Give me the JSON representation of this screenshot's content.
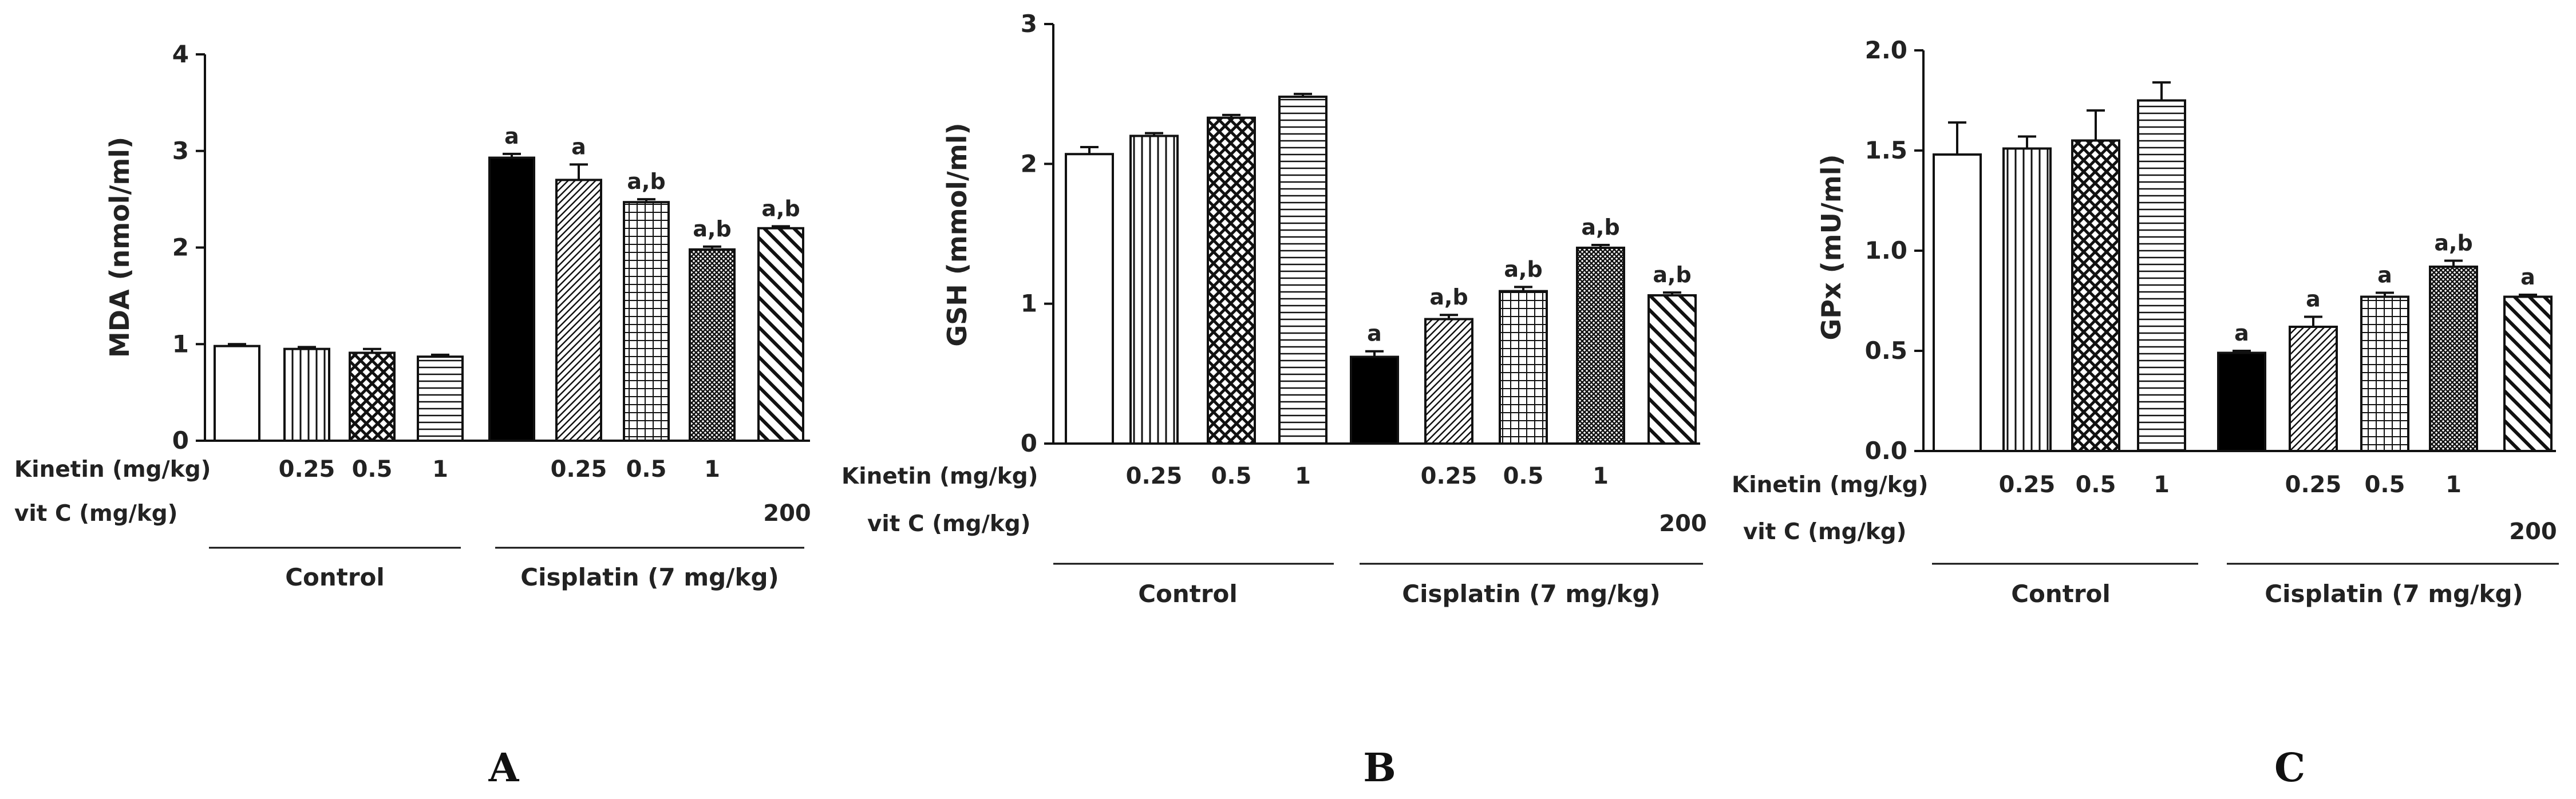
{
  "labels": {
    "kinetin": "Kinetin (mg/kg)",
    "vitc": "vit C (mg/kg)",
    "control": "Control",
    "cisplatin": "Cisplatin (7 mg/kg)"
  },
  "doses": {
    "kinetin": [
      "",
      "0.25",
      "0.5",
      "1",
      "",
      "0.25",
      "0.5",
      "1",
      ""
    ],
    "vitc": [
      "",
      "",
      "",
      "",
      "",
      "",
      "",
      "",
      "200"
    ]
  },
  "chart_data": [
    {
      "type": "bar",
      "panel": "A",
      "ylabel": "MDA (nmol/ml)",
      "ylim": [
        0,
        4
      ],
      "yticks": [
        "0",
        "1",
        "2",
        "3",
        "4"
      ],
      "values": [
        0.98,
        0.95,
        0.91,
        0.87,
        2.93,
        2.7,
        2.47,
        1.98,
        2.2
      ],
      "errors": [
        0.02,
        0.02,
        0.04,
        0.02,
        0.04,
        0.16,
        0.03,
        0.03,
        0.02
      ],
      "significance": [
        "",
        "",
        "",
        "",
        "a",
        "a",
        "a,b",
        "a,b",
        "a,b"
      ]
    },
    {
      "type": "bar",
      "panel": "B",
      "ylabel": "GSH (mmol/ml)",
      "ylim": [
        0,
        3
      ],
      "yticks": [
        "0",
        "1",
        "2",
        "3"
      ],
      "values": [
        2.07,
        2.2,
        2.33,
        2.48,
        0.62,
        0.89,
        1.09,
        1.4,
        1.06
      ],
      "errors": [
        0.05,
        0.02,
        0.02,
        0.02,
        0.04,
        0.03,
        0.03,
        0.02,
        0.02
      ],
      "significance": [
        "",
        "",
        "",
        "",
        "a",
        "a,b",
        "a,b",
        "a,b",
        "a,b"
      ]
    },
    {
      "type": "bar",
      "panel": "C",
      "ylabel": "GPx (mU/ml)",
      "ylim": [
        0,
        2.0
      ],
      "yticks": [
        "0.0",
        "0.5",
        "1.0",
        "1.5",
        "2.0"
      ],
      "values": [
        1.48,
        1.51,
        1.55,
        1.75,
        0.49,
        0.62,
        0.77,
        0.92,
        0.77
      ],
      "errors": [
        0.16,
        0.06,
        0.15,
        0.09,
        0.01,
        0.05,
        0.02,
        0.03,
        0.01
      ],
      "significance": [
        "",
        "",
        "",
        "",
        "a",
        "a",
        "a",
        "a,b",
        "a"
      ]
    }
  ]
}
